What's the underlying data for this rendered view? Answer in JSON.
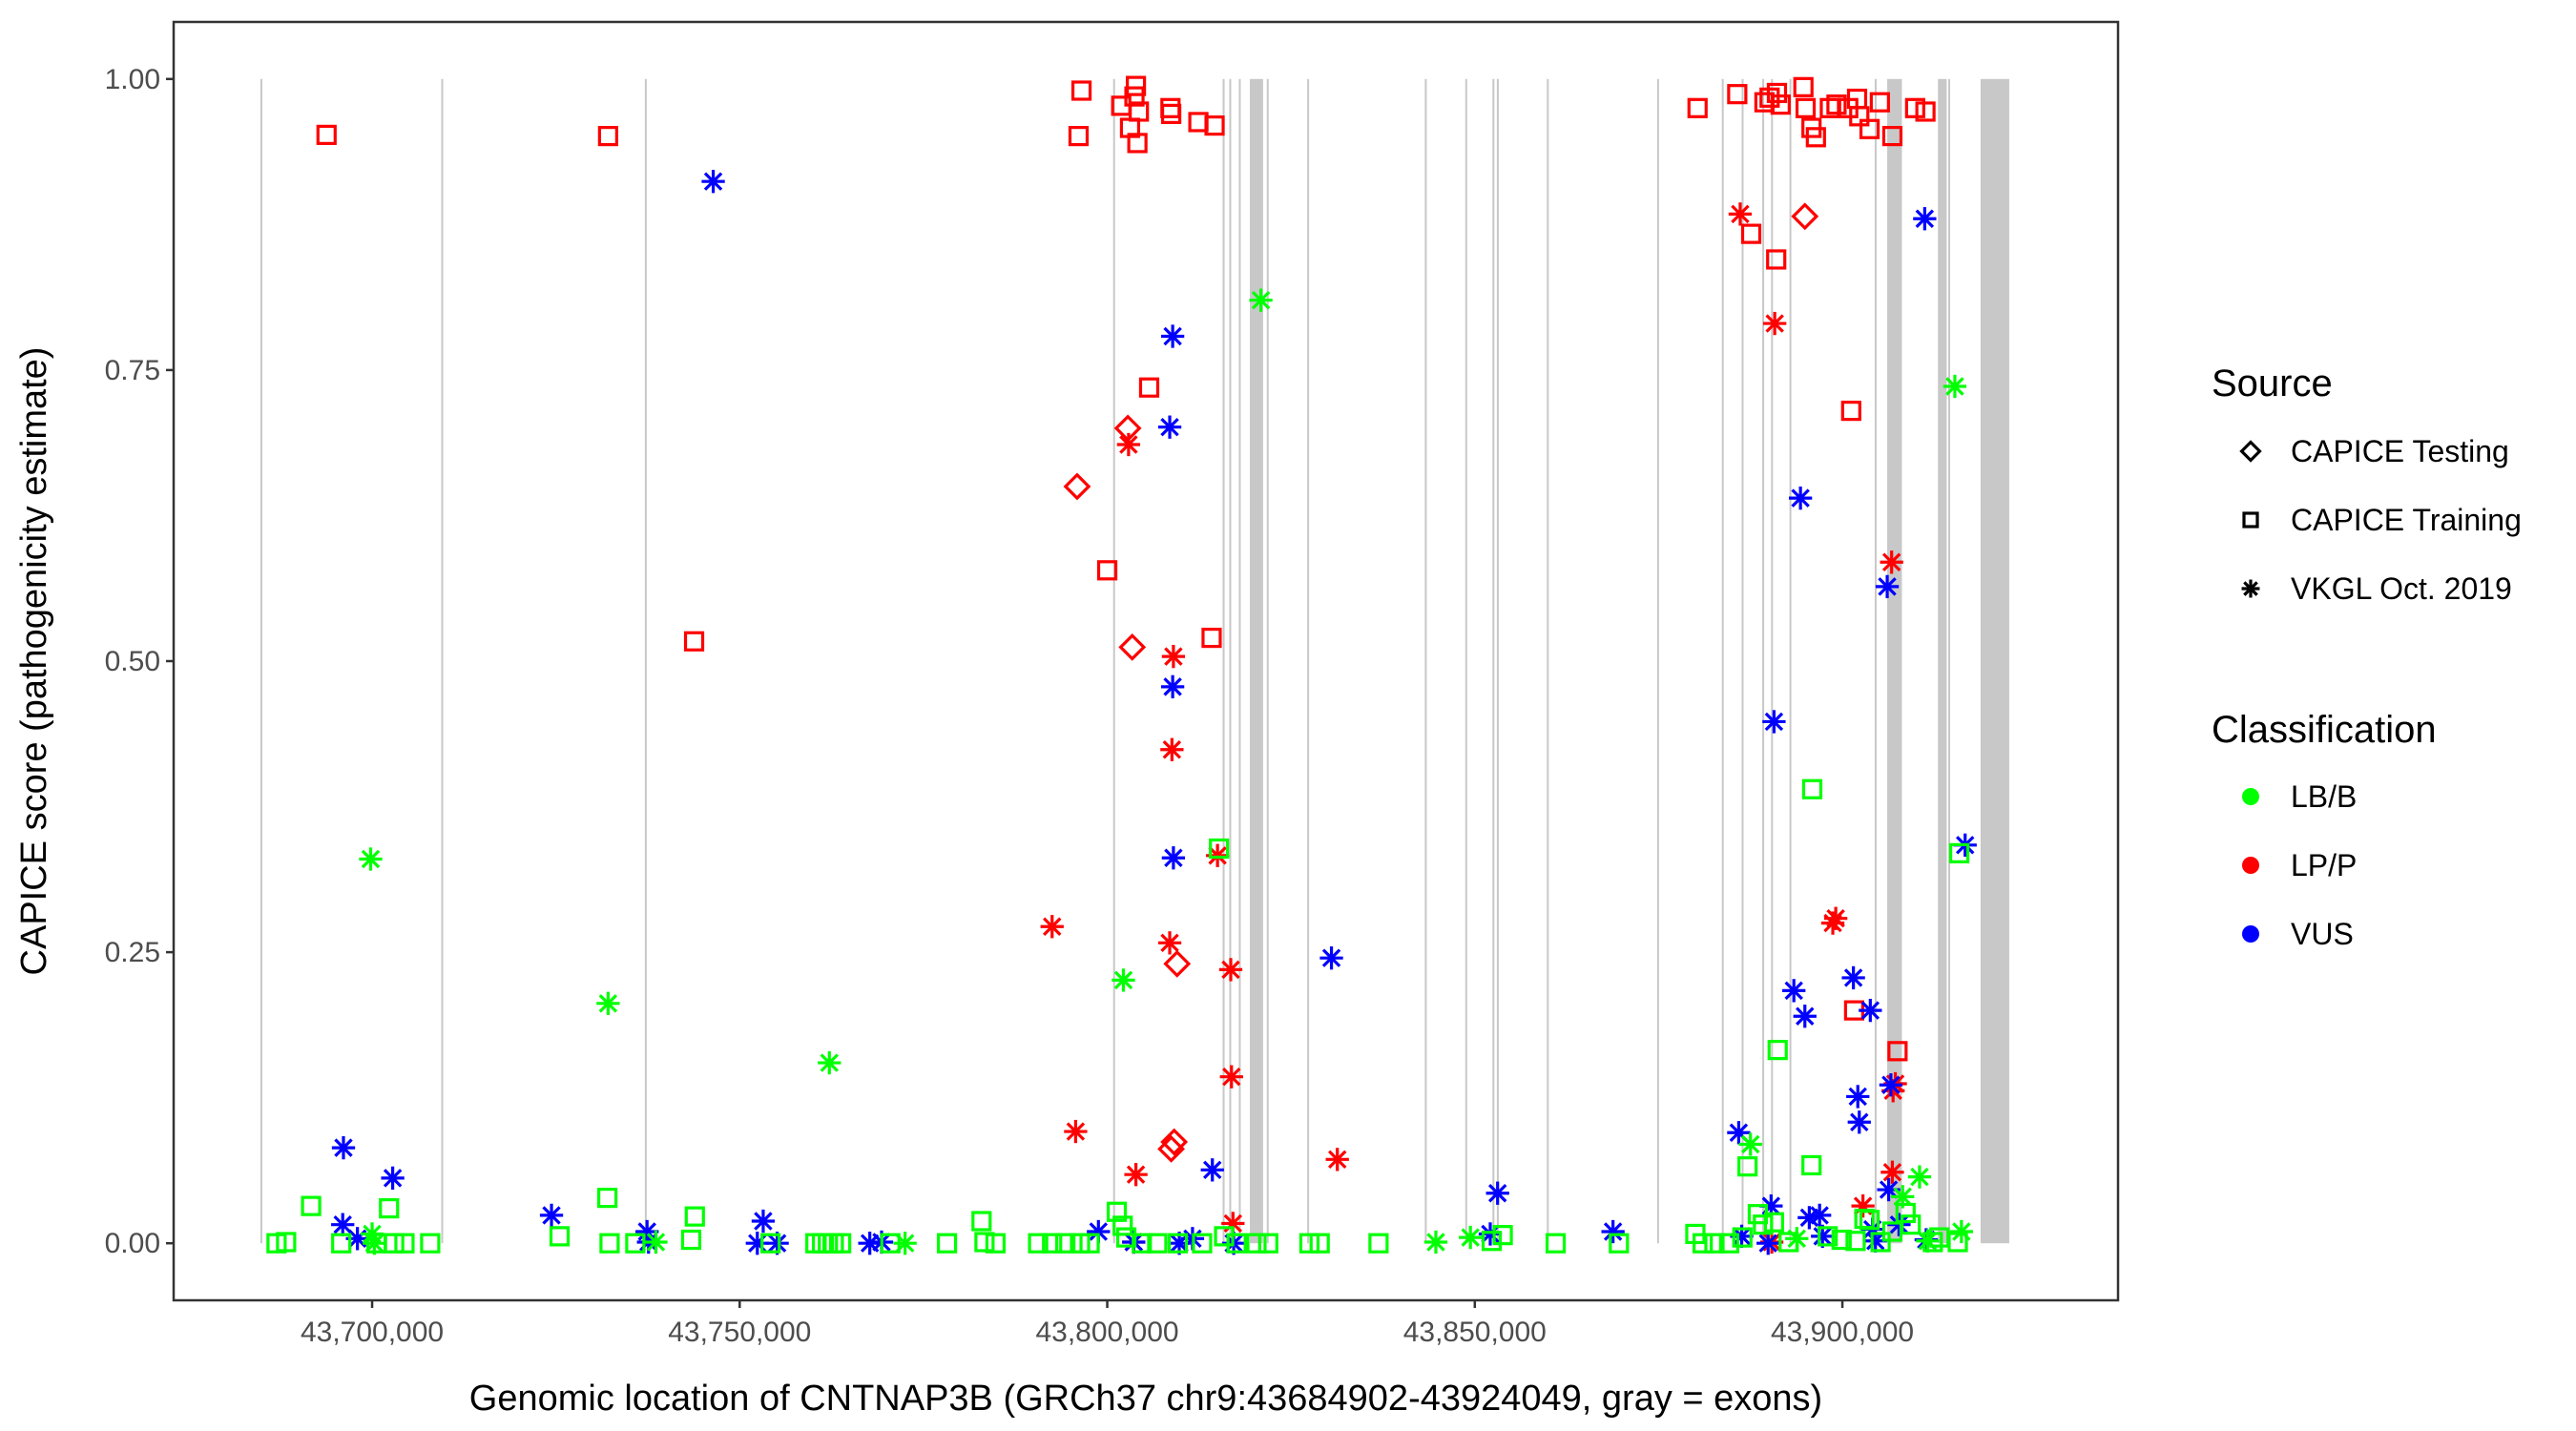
{
  "chart_data": {
    "type": "scatter",
    "title": "",
    "xlabel": "Genomic location of CNTNAP3B (GRCh37 chr9:43684902-43924049, gray = exons)",
    "ylabel": "CAPICE score (pathogenicity estimate)",
    "xlim": [
      43673000,
      43937500
    ],
    "ylim": [
      -0.049,
      1.049
    ],
    "x_ticks": [
      43700000,
      43750000,
      43800000,
      43850000,
      43900000
    ],
    "x_tick_labels": [
      "43,700,000",
      "43,750,000",
      "43,800,000",
      "43,850,000",
      "43,900,000"
    ],
    "y_ticks": [
      0,
      0.25,
      0.5,
      0.75,
      1.0
    ],
    "y_tick_labels": [
      "0.00",
      "0.25",
      "0.50",
      "0.75",
      "1.00"
    ],
    "grid": false,
    "gene_range": [
      43684902,
      43924049
    ],
    "exons": [
      [
        43684800,
        43685000
      ],
      [
        43709400,
        43709500
      ],
      [
        43737100,
        43737200
      ],
      [
        43800800,
        43800900
      ],
      [
        43815700,
        43815800
      ],
      [
        43816600,
        43816700
      ],
      [
        43817900,
        43818000
      ],
      [
        43819400,
        43821200
      ],
      [
        43821700,
        43821900
      ],
      [
        43827200,
        43827300
      ],
      [
        43843200,
        43843300
      ],
      [
        43848700,
        43848800
      ],
      [
        43852400,
        43852500
      ],
      [
        43853000,
        43853100
      ],
      [
        43859800,
        43859900
      ],
      [
        43874800,
        43874900
      ],
      [
        43883600,
        43883700
      ],
      [
        43886300,
        43886400
      ],
      [
        43889100,
        43889200
      ],
      [
        43890300,
        43890400
      ],
      [
        43892800,
        43892900
      ],
      [
        43904400,
        43904500
      ],
      [
        43906100,
        43908100
      ],
      [
        43913000,
        43914200
      ],
      [
        43914400,
        43914500
      ],
      [
        43918800,
        43922700
      ]
    ],
    "legend": {
      "position": "right",
      "source_title": "Source",
      "source_entries": [
        {
          "key": "test",
          "label": "CAPICE Testing",
          "shape": "diamond"
        },
        {
          "key": "train",
          "label": "CAPICE Training",
          "shape": "square"
        },
        {
          "key": "vkgl",
          "label": "VKGL Oct. 2019",
          "shape": "asterisk"
        }
      ],
      "class_title": "Classification",
      "class_entries": [
        {
          "key": "LB",
          "label": "LB/B",
          "color": "#00ff00"
        },
        {
          "key": "LP",
          "label": "LP/P",
          "color": "#ff0000"
        },
        {
          "key": "VUS",
          "label": "VUS",
          "color": "#0000ff"
        }
      ]
    },
    "series": [
      {
        "name": "LP/P CAPICE Training",
        "cls": "LP",
        "src": "train",
        "points": [
          [
            43693800,
            0.952
          ],
          [
            43732100,
            0.951
          ],
          [
            43743800,
            0.517
          ],
          [
            43796100,
            0.951
          ],
          [
            43796500,
            0.99
          ],
          [
            43800000,
            0.578
          ],
          [
            43801900,
            0.977
          ],
          [
            43803100,
            0.958
          ],
          [
            43803700,
            0.985
          ],
          [
            43803900,
            0.994
          ],
          [
            43804100,
            0.945
          ],
          [
            43804300,
            0.972
          ],
          [
            43805700,
            0.735
          ],
          [
            43808600,
            0.975
          ],
          [
            43808700,
            0.97
          ],
          [
            43812400,
            0.963
          ],
          [
            43814600,
            0.96
          ],
          [
            43814200,
            0.52
          ],
          [
            43880300,
            0.975
          ],
          [
            43885700,
            0.987
          ],
          [
            43887600,
            0.867
          ],
          [
            43889400,
            0.98
          ],
          [
            43890100,
            0.984
          ],
          [
            43891000,
            0.845
          ],
          [
            43891100,
            0.988
          ],
          [
            43891600,
            0.978
          ],
          [
            43894700,
            0.993
          ],
          [
            43895000,
            0.975
          ],
          [
            43895800,
            0.958
          ],
          [
            43896400,
            0.95
          ],
          [
            43898300,
            0.975
          ],
          [
            43899200,
            0.978
          ],
          [
            43900800,
            0.975
          ],
          [
            43901200,
            0.715
          ],
          [
            43901600,
            0.2
          ],
          [
            43902000,
            0.983
          ],
          [
            43902300,
            0.968
          ],
          [
            43903700,
            0.957
          ],
          [
            43905100,
            0.98
          ],
          [
            43906800,
            0.951
          ],
          [
            43907500,
            0.165
          ],
          [
            43909900,
            0.975
          ],
          [
            43911300,
            0.972
          ]
        ]
      },
      {
        "name": "LP/P CAPICE Testing",
        "cls": "LP",
        "src": "test",
        "points": [
          [
            43795900,
            0.65
          ],
          [
            43802800,
            0.7
          ],
          [
            43803400,
            0.512
          ],
          [
            43808700,
            0.081
          ],
          [
            43809100,
            0.087
          ],
          [
            43809500,
            0.24
          ],
          [
            43894900,
            0.882
          ]
        ]
      },
      {
        "name": "LP/P VKGL",
        "cls": "LP",
        "src": "vkgl",
        "points": [
          [
            43792500,
            0.272
          ],
          [
            43795700,
            0.096
          ],
          [
            43802900,
            0.686
          ],
          [
            43803900,
            0.059
          ],
          [
            43803600,
            0.001
          ],
          [
            43808500,
            0.258
          ],
          [
            43808800,
            0.424
          ],
          [
            43809000,
            0.504
          ],
          [
            43815000,
            0.333
          ],
          [
            43816800,
            0.235
          ],
          [
            43816900,
            0.143
          ],
          [
            43817100,
            0.017
          ],
          [
            43831300,
            0.072
          ],
          [
            43886100,
            0.884
          ],
          [
            43890800,
            0.79
          ],
          [
            43890400,
            0.001
          ],
          [
            43898700,
            0.275
          ],
          [
            43899100,
            0.279
          ],
          [
            43902800,
            0.032
          ],
          [
            43906700,
            0.585
          ],
          [
            43906900,
            0.131
          ],
          [
            43906800,
            0.061
          ],
          [
            43907200,
            0.137
          ]
        ]
      },
      {
        "name": "VUS VKGL",
        "cls": "VUS",
        "src": "vkgl",
        "points": [
          [
            43696100,
            0.082
          ],
          [
            43696000,
            0.016
          ],
          [
            43698000,
            0.004
          ],
          [
            43702800,
            0.056
          ],
          [
            43724400,
            0.024
          ],
          [
            43737400,
            0.01
          ],
          [
            43737600,
            0.001
          ],
          [
            43746400,
            0.912
          ],
          [
            43753200,
            0.019
          ],
          [
            43752400,
            0.0
          ],
          [
            43755100,
            0.0
          ],
          [
            43767700,
            0.0
          ],
          [
            43769300,
            0.001
          ],
          [
            43798800,
            0.01
          ],
          [
            43803600,
            0.001
          ],
          [
            43808500,
            0.701
          ],
          [
            43808900,
            0.779
          ],
          [
            43808900,
            0.478
          ],
          [
            43809000,
            0.331
          ],
          [
            43809800,
            0.0
          ],
          [
            43811600,
            0.004
          ],
          [
            43814300,
            0.063
          ],
          [
            43817200,
            0.0
          ],
          [
            43830500,
            0.245
          ],
          [
            43852100,
            0.008
          ],
          [
            43853100,
            0.043
          ],
          [
            43868800,
            0.01
          ],
          [
            43885900,
            0.095
          ],
          [
            43886300,
            0.006
          ],
          [
            43889900,
            0.0
          ],
          [
            43890300,
            0.032
          ],
          [
            43890700,
            0.448
          ],
          [
            43893400,
            0.217
          ],
          [
            43894300,
            0.64
          ],
          [
            43894900,
            0.195
          ],
          [
            43895500,
            0.022
          ],
          [
            43896900,
            0.024
          ],
          [
            43897300,
            0.006
          ],
          [
            43901500,
            0.228
          ],
          [
            43902100,
            0.126
          ],
          [
            43902300,
            0.104
          ],
          [
            43903800,
            0.2
          ],
          [
            43904100,
            0.012
          ],
          [
            43904500,
            0.002
          ],
          [
            43906100,
            0.564
          ],
          [
            43906300,
            0.046
          ],
          [
            43906600,
            0.136
          ],
          [
            43907700,
            0.016
          ],
          [
            43911200,
            0.88
          ],
          [
            43911400,
            0.003
          ],
          [
            43916700,
            0.342
          ]
        ]
      },
      {
        "name": "LB/B CAPICE Training",
        "cls": "LB",
        "src": "train",
        "points": [
          [
            43687000,
            0.0
          ],
          [
            43688300,
            0.001
          ],
          [
            43691700,
            0.032
          ],
          [
            43695800,
            0.0
          ],
          [
            43700600,
            0.0
          ],
          [
            43702300,
            0.03
          ],
          [
            43703000,
            0.0
          ],
          [
            43704400,
            0.0
          ],
          [
            43707900,
            0.0
          ],
          [
            43725500,
            0.006
          ],
          [
            43732000,
            0.039
          ],
          [
            43732300,
            0.0
          ],
          [
            43735800,
            0.0
          ],
          [
            43743900,
            0.023
          ],
          [
            43743400,
            0.003
          ],
          [
            43754200,
            0.0
          ],
          [
            43760300,
            0.0
          ],
          [
            43761200,
            0.0
          ],
          [
            43762000,
            0.0
          ],
          [
            43762800,
            0.0
          ],
          [
            43763800,
            0.0
          ],
          [
            43770500,
            0.0
          ],
          [
            43778200,
            0.0
          ],
          [
            43782900,
            0.019
          ],
          [
            43783300,
            0.001
          ],
          [
            43784800,
            0.0
          ],
          [
            43790600,
            0.0
          ],
          [
            43792500,
            0.0
          ],
          [
            43794300,
            0.0
          ],
          [
            43796300,
            0.0
          ],
          [
            43797600,
            0.0
          ],
          [
            43801300,
            0.027
          ],
          [
            43802100,
            0.015
          ],
          [
            43802600,
            0.005
          ],
          [
            43804700,
            0.0
          ],
          [
            43806800,
            0.0
          ],
          [
            43809600,
            0.0
          ],
          [
            43812900,
            0.0
          ],
          [
            43815200,
            0.339
          ],
          [
            43815900,
            0.006
          ],
          [
            43817600,
            0.0
          ],
          [
            43820300,
            0.0
          ],
          [
            43821900,
            0.0
          ],
          [
            43827500,
            0.0
          ],
          [
            43828900,
            0.0
          ],
          [
            43836900,
            0.0
          ],
          [
            43852300,
            0.002
          ],
          [
            43853800,
            0.007
          ],
          [
            43861000,
            0.0
          ],
          [
            43869600,
            0.0
          ],
          [
            43880000,
            0.008
          ],
          [
            43881000,
            0.0
          ],
          [
            43882600,
            0.0
          ],
          [
            43884600,
            0.0
          ],
          [
            43886400,
            0.005
          ],
          [
            43887100,
            0.066
          ],
          [
            43888500,
            0.025
          ],
          [
            43889200,
            0.016
          ],
          [
            43890700,
            0.018
          ],
          [
            43891200,
            0.166
          ],
          [
            43892700,
            0.001
          ],
          [
            43895800,
            0.067
          ],
          [
            43895900,
            0.39
          ],
          [
            43898000,
            0.006
          ],
          [
            43899900,
            0.003
          ],
          [
            43901800,
            0.002
          ],
          [
            43903000,
            0.021
          ],
          [
            43903700,
            0.02
          ],
          [
            43905200,
            0.001
          ],
          [
            43906800,
            0.01
          ],
          [
            43908600,
            0.026
          ],
          [
            43909300,
            0.016
          ],
          [
            43912300,
            0.001
          ],
          [
            43913200,
            0.005
          ],
          [
            43915700,
            0.001
          ],
          [
            43915900,
            0.335
          ]
        ]
      },
      {
        "name": "LB/B VKGL",
        "cls": "LB",
        "src": "vkgl",
        "points": [
          [
            43699800,
            0.33
          ],
          [
            43700000,
            0.008
          ],
          [
            43700300,
            0.0
          ],
          [
            43732100,
            0.206
          ],
          [
            43738600,
            0.001
          ],
          [
            43762200,
            0.155
          ],
          [
            43772500,
            0.0
          ],
          [
            43802200,
            0.226
          ],
          [
            43820900,
            0.81
          ],
          [
            43844700,
            0.001
          ],
          [
            43849400,
            0.005
          ],
          [
            43887500,
            0.085
          ],
          [
            43893800,
            0.004
          ],
          [
            43908200,
            0.04
          ],
          [
            43910500,
            0.057
          ],
          [
            43915300,
            0.736
          ],
          [
            43916200,
            0.01
          ],
          [
            43911600,
            0.002
          ]
        ]
      }
    ]
  }
}
